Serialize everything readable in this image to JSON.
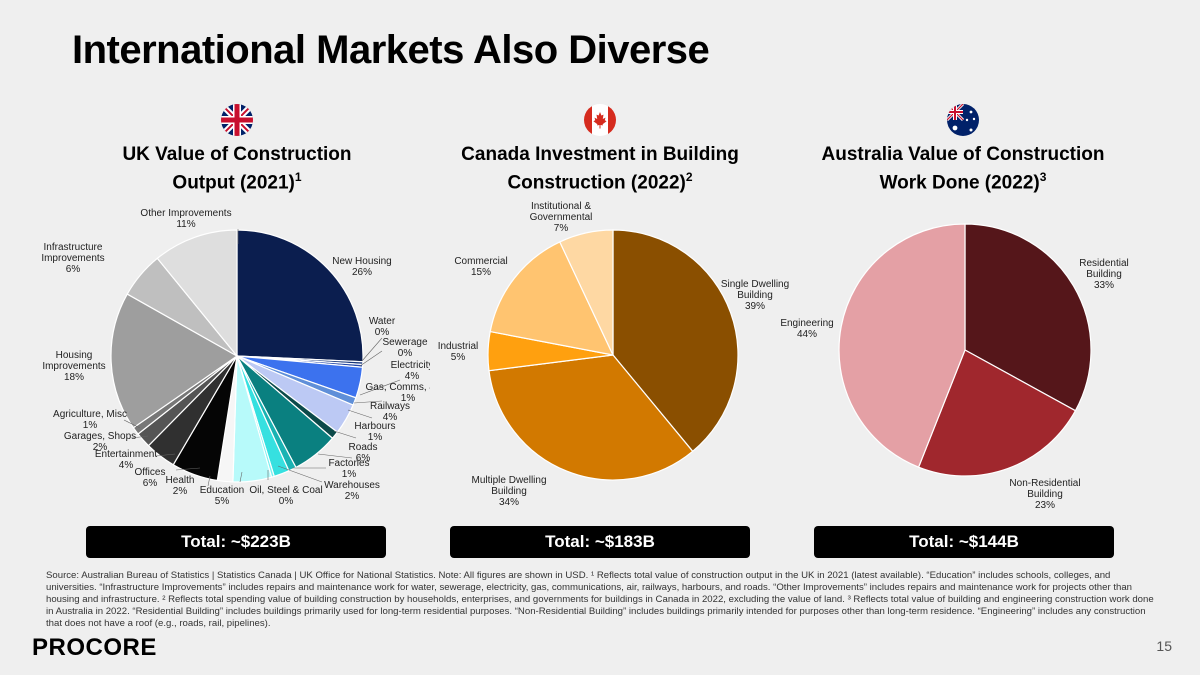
{
  "slide": {
    "title": "International Markets Also Diverse",
    "source_note": "Source: Australian Bureau of Statistics | Statistics Canada | UK Office for National Statistics. Note: All figures are shown in USD. ¹ Reflects total value of construction output in the UK in 2021 (latest available). “Education” includes schools, colleges, and universities. “Infrastructure Improvements” includes repairs and maintenance work for water, sewerage, electricity, gas, communications, air, railways, harbours, and roads. “Other Improvements” includes repairs and maintenance work for projects other than housing and infrastructure. ² Reflects total spending value of building construction by households, enterprises, and governments for buildings in Canada in 2022, excluding the value of land. ³ Reflects total value of building and engineering construction work done in Australia in 2022. “Residential Building” includes buildings primarily used for long-term residential purposes. “Non-Residential Building” includes buildings primarily intended for purposes other than long-term residence. “Engineering” includes any construction that does not have a roof (e.g., roads, rail, pipelines).",
    "logo_text": "PROCORE",
    "page_number": "15"
  },
  "chart_data": [
    {
      "type": "pie",
      "title": "UK Value of Construction Output (2021)",
      "title_lines": [
        "UK Value of Construction",
        "Output (2021)"
      ],
      "footnote": "1",
      "flag": "uk-flag-icon",
      "total": "Total: ~$223B",
      "slices": [
        {
          "label": "New Housing",
          "pct": "26%",
          "value": 26,
          "color": "#0b1e4f"
        },
        {
          "label": "Water",
          "pct": "0%",
          "value": 0.35,
          "color": "#16357a"
        },
        {
          "label": "Sewerage",
          "pct": "0%",
          "value": 0.35,
          "color": "#2447a8"
        },
        {
          "label": "Electricity",
          "pct": "4%",
          "value": 4,
          "color": "#3c72ee"
        },
        {
          "label": "Gas, Comms, & Air",
          "pct": "1%",
          "value": 1,
          "color": "#5f8fd8"
        },
        {
          "label": "Railways",
          "pct": "4%",
          "value": 4,
          "color": "#bcc9f4"
        },
        {
          "label": "Harbours",
          "pct": "1%",
          "value": 1,
          "color": "#0c4a4a"
        },
        {
          "label": "Roads",
          "pct": "6%",
          "value": 6,
          "color": "#0a8080"
        },
        {
          "label": "Factories",
          "pct": "1%",
          "value": 1,
          "color": "#19b3b3"
        },
        {
          "label": "Warehouses",
          "pct": "2%",
          "value": 2,
          "color": "#36e0e0"
        },
        {
          "label": "Oil, Steel & Coal",
          "pct": "0%",
          "value": 0.35,
          "color": "#7af0f0"
        },
        {
          "label": "Education",
          "pct": "5%",
          "value": 5,
          "color": "#b7fafa"
        },
        {
          "label": "Health",
          "pct": "2%",
          "value": 2,
          "color": "#f6f6f6"
        },
        {
          "label": "Offices",
          "pct": "6%",
          "value": 6,
          "color": "#050505"
        },
        {
          "label": "Entertainment",
          "pct": "4%",
          "value": 4,
          "color": "#303030"
        },
        {
          "label": "Garages, Shops",
          "pct": "2%",
          "value": 2,
          "color": "#555555"
        },
        {
          "label": "Agriculture, Misc",
          "pct": "1%",
          "value": 1,
          "color": "#777777"
        },
        {
          "label": "Housing Improvements",
          "pct": "18%",
          "value": 18,
          "color": "#9e9e9e"
        },
        {
          "label": "Infrastructure Improvements",
          "pct": "6%",
          "value": 6,
          "color": "#bfbfbf"
        },
        {
          "label": "Other Improvements",
          "pct": "11%",
          "value": 11,
          "color": "#dedede"
        }
      ]
    },
    {
      "type": "pie",
      "title": "Canada Investment in Building Construction (2022)",
      "title_lines": [
        "Canada Investment in Building",
        "Construction (2022)"
      ],
      "footnote": "2",
      "flag": "canada-flag-icon",
      "total": "Total: ~$183B",
      "slices": [
        {
          "label": "Single Dwelling Building",
          "pct": "39%",
          "value": 39,
          "color": "#8a4f00"
        },
        {
          "label": "Multiple Dwelling Building",
          "pct": "34%",
          "value": 34,
          "color": "#d27900"
        },
        {
          "label": "Industrial",
          "pct": "5%",
          "value": 5,
          "color": "#ffa00f"
        },
        {
          "label": "Commercial",
          "pct": "15%",
          "value": 15,
          "color": "#ffc470"
        },
        {
          "label": "Institutional & Governmental",
          "pct": "7%",
          "value": 7,
          "color": "#fed8a3"
        }
      ]
    },
    {
      "type": "pie",
      "title": "Australia Value of Construction Work Done (2022)",
      "title_lines": [
        "Australia Value of Construction",
        "Work Done (2022)"
      ],
      "footnote": "3",
      "flag": "australia-flag-icon",
      "total": "Total: ~$144B",
      "slices": [
        {
          "label": "Residential Building",
          "pct": "33%",
          "value": 33,
          "color": "#55161a"
        },
        {
          "label": "Non-Residential Building",
          "pct": "23%",
          "value": 23,
          "color": "#a0272d"
        },
        {
          "label": "Engineering",
          "pct": "44%",
          "value": 44,
          "color": "#e4a0a5"
        }
      ]
    }
  ]
}
